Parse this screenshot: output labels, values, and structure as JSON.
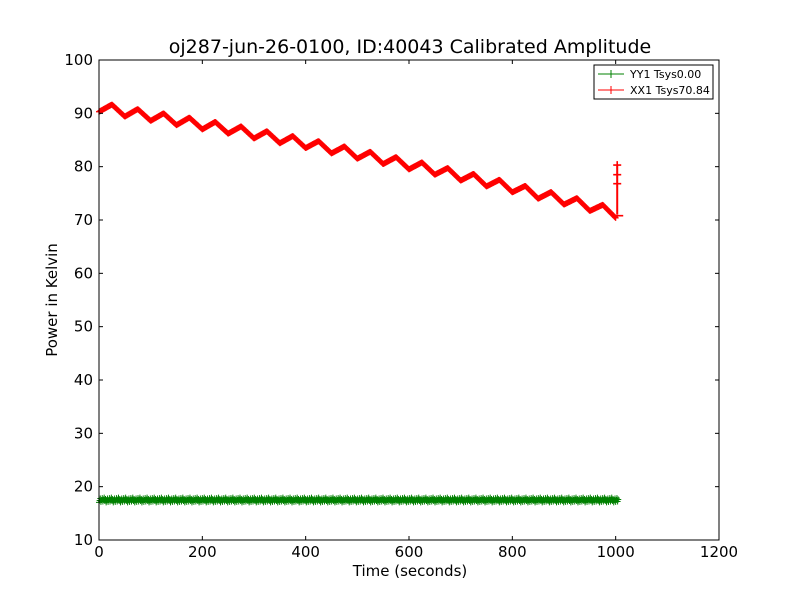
{
  "chart_data": {
    "type": "line",
    "title": "oj287-jun-26-0100, ID:40043 Calibrated Amplitude",
    "xlabel": "Time (seconds)",
    "ylabel": "Power in Kelvin",
    "xlim": [
      0,
      1200
    ],
    "ylim": [
      10,
      100
    ],
    "xticks": [
      0,
      200,
      400,
      600,
      800,
      1000,
      1200
    ],
    "yticks": [
      10,
      20,
      30,
      40,
      50,
      60,
      70,
      80,
      90,
      100
    ],
    "grid": false,
    "legend_position": "top-right",
    "series": [
      {
        "name": "YY1 Tsys0.00",
        "color": "#008000",
        "marker": "plus",
        "x_range": [
          0,
          1005
        ],
        "y_mean": 17.5,
        "y_spread": 0.9,
        "points": 800
      },
      {
        "name": "XX1 Tsys70.84",
        "color": "#ff0000",
        "marker": "plus",
        "x": [
          0,
          50,
          100,
          150,
          200,
          250,
          300,
          350,
          400,
          450,
          500,
          550,
          600,
          650,
          700,
          750,
          800,
          850,
          900,
          950,
          1000
        ],
        "y": [
          91.2,
          90.3,
          89.5,
          88.7,
          87.9,
          87.1,
          86.2,
          85.3,
          84.4,
          83.4,
          82.4,
          81.4,
          80.4,
          79.4,
          78.3,
          77.2,
          76.1,
          74.9,
          73.8,
          72.6,
          71.3
        ],
        "oscillation_amplitude": 0.9,
        "oscillation_period": 50,
        "spike": {
          "x": 1003,
          "y_from": 71.0,
          "y_to": 80.3,
          "end_y": 70.8
        }
      }
    ]
  }
}
